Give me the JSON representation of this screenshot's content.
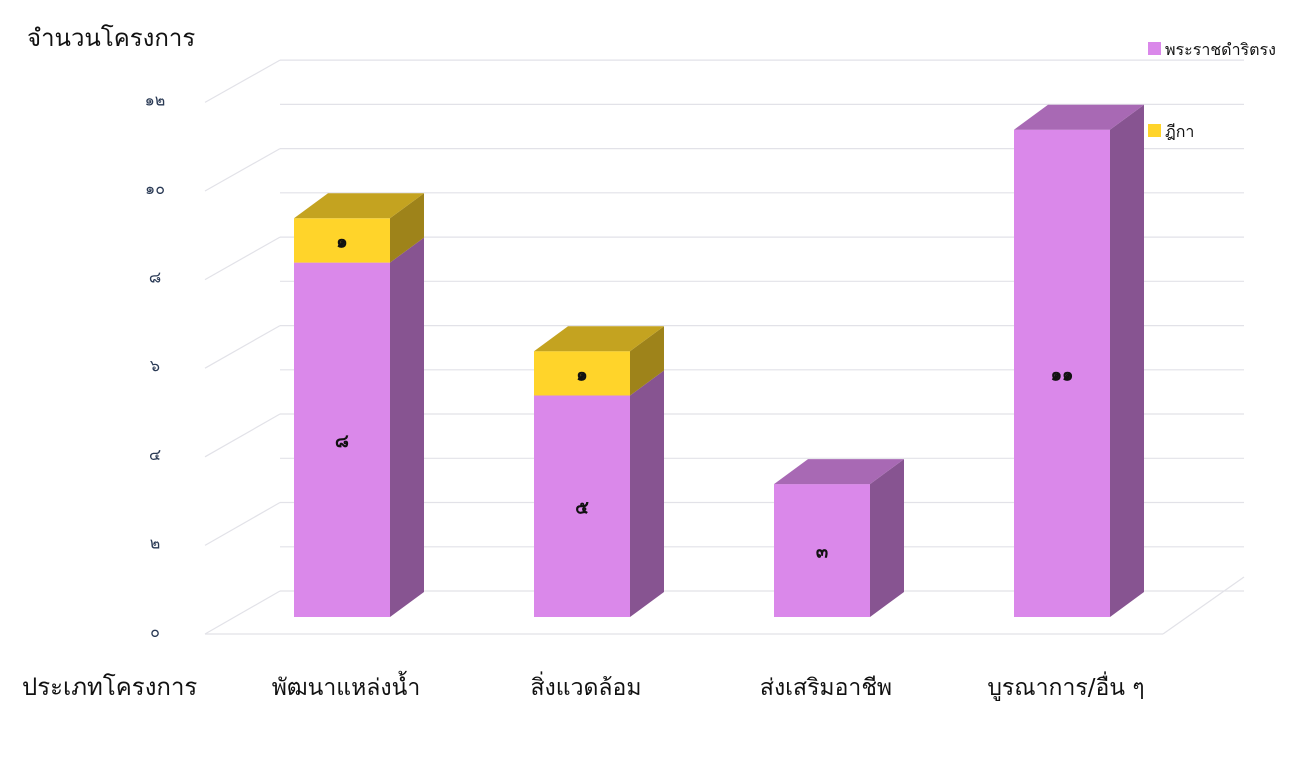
{
  "chart_data": {
    "type": "bar",
    "stacked": true,
    "three_d": true,
    "ylabel": "จำนวนโครงการ",
    "xlabel": "ประเภทโครงการ",
    "categories": [
      "พัฒนาแหล่งน้ำ",
      "สิ่งแวดล้อม",
      "ส่งเสริมอาชีพ",
      "บูรณาการ/อื่น ๆ"
    ],
    "series": [
      {
        "name": "พระราชดำริตรง",
        "values": [
          8,
          5,
          3,
          11
        ],
        "labels": [
          "๘",
          "๕",
          "๓",
          "๑๑"
        ],
        "color": "#da88ea"
      },
      {
        "name": "ฎีกา",
        "values": [
          1,
          1,
          0,
          0
        ],
        "labels": [
          "๑",
          "๑",
          "",
          ""
        ],
        "color": "#ffd42a"
      }
    ],
    "ylim": [
      0,
      12
    ],
    "yticks": [
      0,
      2,
      4,
      6,
      8,
      10,
      12
    ],
    "ytick_labels": [
      "๐",
      "๒",
      "๔",
      "๖",
      "๘",
      "๑๐",
      "๑๒"
    ],
    "grid": true,
    "legend": "top-right"
  }
}
